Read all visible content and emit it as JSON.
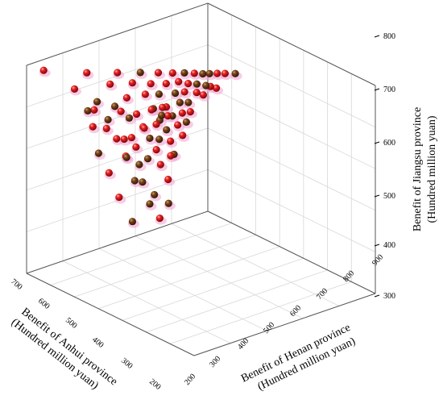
{
  "chart_data": {
    "type": "scatter",
    "title": "",
    "xlabel": [
      "Benefit of Henan province",
      "(Hundred million yuan)"
    ],
    "ylabel": [
      "Benefit of Anhui province",
      "(Hundred million yuan)"
    ],
    "zlabel": [
      "Benefit of Jiangsu province",
      "(Hundred million yuan)"
    ],
    "x_ticks": [
      "300",
      "400",
      "500",
      "600",
      "700",
      "800",
      "900"
    ],
    "y_ticks": [
      "700",
      "600",
      "500",
      "400",
      "300",
      "200"
    ],
    "z_ticks": [
      "300",
      "400",
      "500",
      "600",
      "700",
      "800"
    ],
    "x_corner_tick": "200",
    "xlim": [
      200,
      900
    ],
    "ylim": [
      200,
      700
    ],
    "zlim": [
      300,
      800
    ],
    "grid": true,
    "marker_colors": [
      "#d8131c",
      "#6b3a12"
    ],
    "points": [
      {
        "x": 238,
        "y": 678,
        "z": 792
      },
      {
        "x": 326,
        "y": 617,
        "z": 793
      },
      {
        "x": 384,
        "y": 571,
        "z": 796
      },
      {
        "x": 427,
        "y": 536,
        "z": 798
      },
      {
        "x": 461,
        "y": 509,
        "z": 799
      },
      {
        "x": 489,
        "y": 488,
        "z": 800
      },
      {
        "x": 511,
        "y": 470,
        "z": 801
      },
      {
        "x": 530,
        "y": 455,
        "z": 801
      },
      {
        "x": 547,
        "y": 443,
        "z": 801
      },
      {
        "x": 560,
        "y": 433,
        "z": 802
      },
      {
        "x": 574,
        "y": 421,
        "z": 803
      },
      {
        "x": 590,
        "y": 410,
        "z": 804
      },
      {
        "x": 610,
        "y": 395,
        "z": 805
      },
      {
        "x": 326,
        "y": 651,
        "z": 764
      },
      {
        "x": 396,
        "y": 599,
        "z": 780
      },
      {
        "x": 436,
        "y": 564,
        "z": 784
      },
      {
        "x": 472,
        "y": 537,
        "z": 784
      },
      {
        "x": 500,
        "y": 513,
        "z": 785
      },
      {
        "x": 520,
        "y": 492,
        "z": 789
      },
      {
        "x": 542,
        "y": 480,
        "z": 787
      },
      {
        "x": 557,
        "y": 466,
        "z": 786
      },
      {
        "x": 574,
        "y": 452,
        "z": 783
      },
      {
        "x": 582,
        "y": 445,
        "z": 781
      },
      {
        "x": 590,
        "y": 434,
        "z": 776
      },
      {
        "x": 387,
        "y": 637,
        "z": 727
      },
      {
        "x": 443,
        "y": 584,
        "z": 756
      },
      {
        "x": 478,
        "y": 556,
        "z": 766
      },
      {
        "x": 505,
        "y": 536,
        "z": 768
      },
      {
        "x": 532,
        "y": 509,
        "z": 770
      },
      {
        "x": 548,
        "y": 494,
        "z": 773
      },
      {
        "x": 570,
        "y": 475,
        "z": 772
      },
      {
        "x": 581,
        "y": 464,
        "z": 766
      },
      {
        "x": 431,
        "y": 632,
        "z": 693
      },
      {
        "x": 481,
        "y": 582,
        "z": 727
      },
      {
        "x": 510,
        "y": 555,
        "z": 740
      },
      {
        "x": 534,
        "y": 535,
        "z": 745
      },
      {
        "x": 556,
        "y": 512,
        "z": 755
      },
      {
        "x": 570,
        "y": 498,
        "z": 755
      },
      {
        "x": 479,
        "y": 615,
        "z": 676
      },
      {
        "x": 508,
        "y": 582,
        "z": 704
      },
      {
        "x": 537,
        "y": 555,
        "z": 720
      },
      {
        "x": 558,
        "y": 534,
        "z": 730
      },
      {
        "x": 575,
        "y": 518,
        "z": 737
      },
      {
        "x": 589,
        "y": 505,
        "z": 740
      },
      {
        "x": 492,
        "y": 619,
        "z": 640
      },
      {
        "x": 533,
        "y": 580,
        "z": 683
      },
      {
        "x": 559,
        "y": 551,
        "z": 702
      },
      {
        "x": 577,
        "y": 532,
        "z": 713
      },
      {
        "x": 592,
        "y": 518,
        "z": 720
      },
      {
        "x": 530,
        "y": 607,
        "z": 627
      },
      {
        "x": 556,
        "y": 577,
        "z": 661
      },
      {
        "x": 577,
        "y": 552,
        "z": 680
      },
      {
        "x": 596,
        "y": 531,
        "z": 693
      },
      {
        "x": 548,
        "y": 610,
        "z": 591
      },
      {
        "x": 575,
        "y": 578,
        "z": 631
      },
      {
        "x": 595,
        "y": 554,
        "z": 654
      },
      {
        "x": 584,
        "y": 601,
        "z": 568
      },
      {
        "x": 602,
        "y": 575,
        "z": 602
      },
      {
        "x": 605,
        "y": 600,
        "z": 517
      },
      {
        "x": 604,
        "y": 575,
        "z": 545
      },
      {
        "x": 562,
        "y": 647,
        "z": 511
      },
      {
        "x": 589,
        "y": 617,
        "z": 552
      },
      {
        "x": 532,
        "y": 664,
        "z": 566
      },
      {
        "x": 555,
        "y": 636,
        "z": 604
      },
      {
        "x": 499,
        "y": 670,
        "z": 617
      },
      {
        "x": 527,
        "y": 640,
        "z": 653
      },
      {
        "x": 466,
        "y": 677,
        "z": 657
      },
      {
        "x": 493,
        "y": 645,
        "z": 690
      },
      {
        "x": 436,
        "y": 673,
        "z": 711
      },
      {
        "x": 460,
        "y": 647,
        "z": 727
      },
      {
        "x": 410,
        "y": 670,
        "z": 741
      },
      {
        "x": 422,
        "y": 652,
        "z": 761
      },
      {
        "x": 513,
        "y": 617,
        "z": 690
      },
      {
        "x": 555,
        "y": 600,
        "z": 646
      },
      {
        "x": 525,
        "y": 590,
        "z": 708
      },
      {
        "x": 545,
        "y": 570,
        "z": 717
      },
      {
        "x": 565,
        "y": 575,
        "z": 688
      },
      {
        "x": 596,
        "y": 564,
        "z": 654
      },
      {
        "x": 549,
        "y": 558,
        "z": 736
      },
      {
        "x": 560,
        "y": 548,
        "z": 735
      },
      {
        "x": 488,
        "y": 607,
        "z": 727
      },
      {
        "x": 470,
        "y": 618,
        "z": 741
      },
      {
        "x": 455,
        "y": 625,
        "z": 751
      },
      {
        "x": 522,
        "y": 568,
        "z": 745
      },
      {
        "x": 542,
        "y": 551,
        "z": 751
      },
      {
        "x": 518,
        "y": 608,
        "z": 666
      }
    ]
  }
}
